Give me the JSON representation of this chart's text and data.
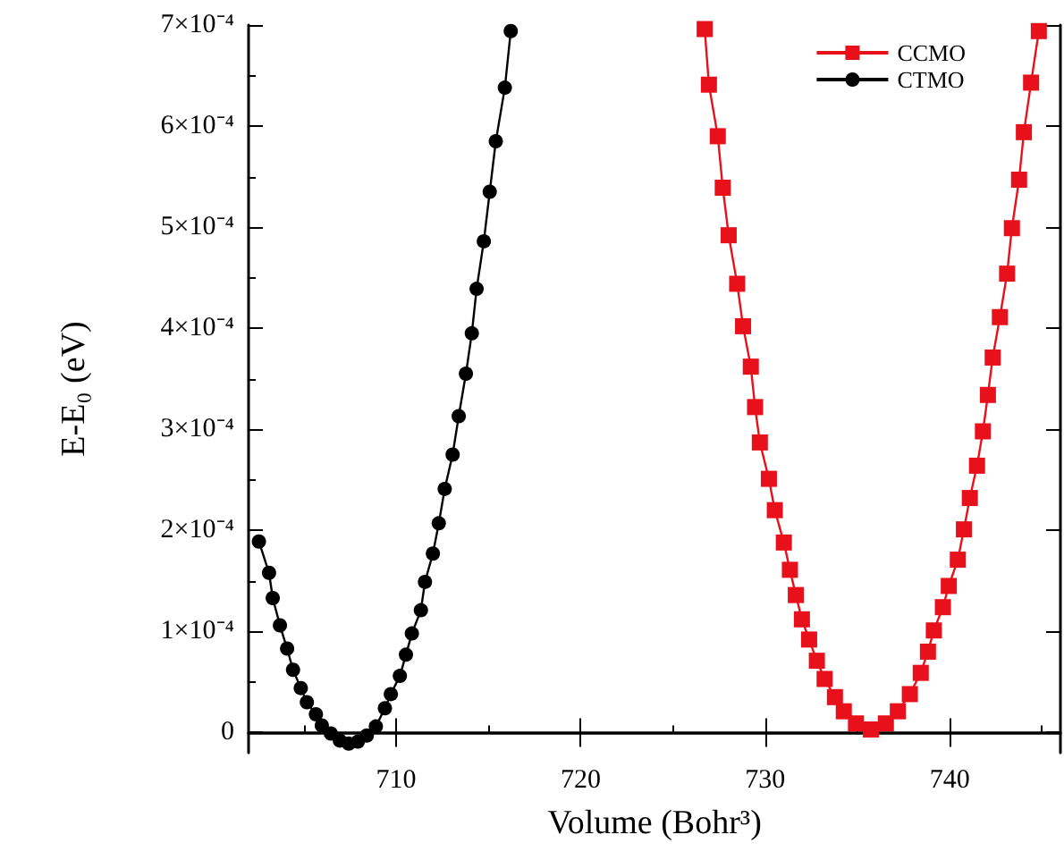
{
  "chart_data": {
    "type": "line",
    "xlabel": "Volume (Bohr³)",
    "ylabel": "E-E₀ (eV)",
    "xlim": [
      702,
      746
    ],
    "xticks": [
      710,
      720,
      730,
      740
    ],
    "ylim": [
      -2e-05,
      0.0007
    ],
    "yticks": [
      {
        "value": 0,
        "label": "0"
      },
      {
        "value": 0.0001,
        "label": "1×10⁻⁴"
      },
      {
        "value": 0.0002,
        "label": "2×10⁻⁴"
      },
      {
        "value": 0.0003,
        "label": "3×10⁻⁴"
      },
      {
        "value": 0.0004,
        "label": "4×10⁻⁴"
      },
      {
        "value": 0.0005,
        "label": "5×10⁻⁴"
      },
      {
        "value": 0.0006,
        "label": "6×10⁻⁴"
      },
      {
        "value": 0.0007,
        "label": "7×10⁻⁴"
      }
    ],
    "grid": false,
    "legend": "top right",
    "line_style": "solid",
    "series": [
      {
        "name": "CCMO",
        "color": "#e8111b",
        "marker": "square",
        "x": [
          726.72,
          726.95,
          727.43,
          727.7,
          728.02,
          728.48,
          728.8,
          729.22,
          729.45,
          729.71,
          730.2,
          730.52,
          731.01,
          731.34,
          731.66,
          731.99,
          732.38,
          732.8,
          733.22,
          733.78,
          734.26,
          734.92,
          735.73,
          736.54,
          737.19,
          737.84,
          738.43,
          738.82,
          739.14,
          739.63,
          739.95,
          740.44,
          740.77,
          741.09,
          741.48,
          741.8,
          742.07,
          742.33,
          742.72,
          743.11,
          743.37,
          743.76,
          744.02,
          744.41,
          744.83
        ],
        "values": [
          0.000696,
          0.000641,
          0.00059,
          0.000539,
          0.000492,
          0.000444,
          0.000402,
          0.000362,
          0.000322,
          0.000287,
          0.000251,
          0.00022,
          0.000188,
          0.000161,
          0.000136,
          0.000112,
          9.2e-05,
          7.1e-05,
          5.3e-05,
          3.5e-05,
          2.1e-05,
          9e-06,
          3e-06,
          9e-06,
          2.1e-05,
          3.8e-05,
          5.9e-05,
          8e-05,
          0.000101,
          0.000124,
          0.000145,
          0.000171,
          0.000201,
          0.000232,
          0.000264,
          0.000298,
          0.000334,
          0.000371,
          0.000411,
          0.000454,
          0.000499,
          0.000547,
          0.000594,
          0.000643,
          0.000694
        ]
      },
      {
        "name": "CTMO",
        "color": "#000000",
        "marker": "circle",
        "x": [
          702.56,
          703.11,
          703.31,
          703.7,
          704.09,
          704.41,
          704.83,
          705.16,
          705.65,
          705.97,
          706.46,
          706.95,
          707.43,
          707.92,
          708.41,
          708.9,
          709.39,
          709.71,
          710.2,
          710.53,
          710.85,
          711.34,
          711.56,
          711.99,
          712.31,
          712.63,
          713.06,
          713.39,
          713.78,
          714.1,
          714.36,
          714.75,
          715.07,
          715.4,
          715.89,
          716.21
        ],
        "values": [
          0.000189,
          0.000158,
          0.000133,
          0.000106,
          8.3e-05,
          6.2e-05,
          4.4e-05,
          3e-05,
          1.8e-05,
          7e-06,
          -1e-06,
          -8e-06,
          -1.1e-05,
          -9e-06,
          -3e-06,
          6e-06,
          2.4e-05,
          3.8e-05,
          5.6e-05,
          7.7e-05,
          9.8e-05,
          0.000121,
          0.000149,
          0.000177,
          0.000207,
          0.000241,
          0.000275,
          0.000313,
          0.000355,
          0.000395,
          0.000439,
          0.000486,
          0.000535,
          0.000585,
          0.000638,
          0.000694
        ]
      }
    ]
  }
}
